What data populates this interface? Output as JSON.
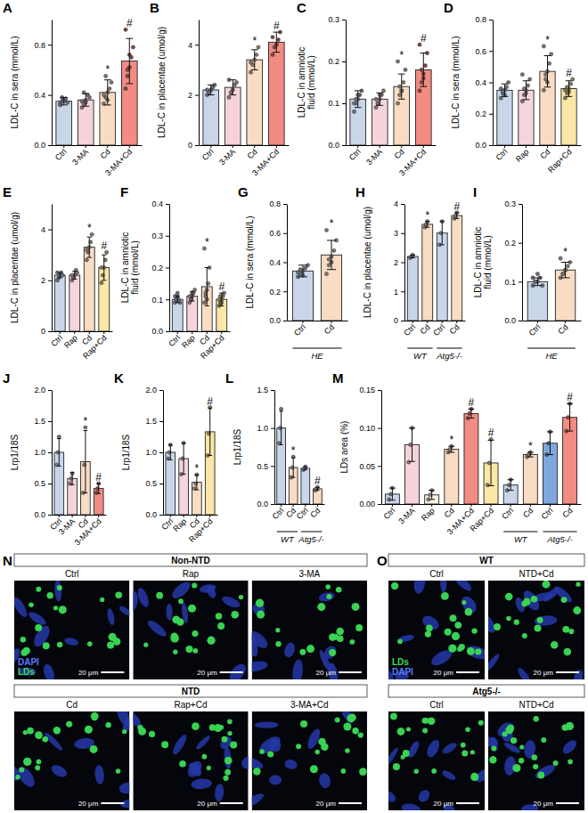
{
  "chart_data": [
    {
      "type": "bar",
      "panel": "A",
      "y_label": "LDL-C in sera (mmol/L)",
      "categories": [
        "Ctrl",
        "3-MA",
        "Cd",
        "3-MA+Cd"
      ],
      "values": [
        0.35,
        0.36,
        0.42,
        0.67
      ],
      "errors": [
        0.03,
        0.05,
        0.1,
        0.18
      ],
      "points": [
        [
          0.33,
          0.35,
          0.36,
          0.37,
          0.34,
          0.32,
          0.38,
          0.35
        ],
        [
          0.3,
          0.33,
          0.36,
          0.4,
          0.38,
          0.35,
          0.42,
          0.34
        ],
        [
          0.33,
          0.38,
          0.42,
          0.45,
          0.5,
          0.4,
          0.55,
          0.36
        ],
        [
          0.45,
          0.55,
          0.62,
          0.7,
          0.78,
          0.92,
          0.6,
          0.72
        ]
      ],
      "colors": [
        "#c9d6ea",
        "#f6d3da",
        "#f9dcc4",
        "#f28b82"
      ],
      "annotations": [
        null,
        null,
        "*",
        "#"
      ],
      "ylim": [
        0,
        1.0
      ],
      "yticks": [
        {
          "value": 0,
          "label": "0.0"
        },
        0.4,
        0.8
      ]
    },
    {
      "type": "bar",
      "panel": "B",
      "y_label": "LDL-C in placentae (umol/g)",
      "categories": [
        "Ctrl",
        "3-MA",
        "Cd",
        "3-MA+Cd"
      ],
      "values": [
        2.2,
        2.3,
        3.4,
        4.1
      ],
      "errors": [
        0.2,
        0.3,
        0.4,
        0.4
      ],
      "points": [
        [
          2.0,
          2.1,
          2.2,
          2.3,
          2.4,
          2.2
        ],
        [
          1.9,
          2.1,
          2.2,
          2.4,
          2.5,
          2.6
        ],
        [
          2.9,
          3.2,
          3.4,
          3.6,
          3.9,
          3.3
        ],
        [
          3.6,
          3.9,
          4.0,
          4.2,
          4.5,
          4.3
        ]
      ],
      "colors": [
        "#c9d6ea",
        "#f6d3da",
        "#f9dcc4",
        "#f28b82"
      ],
      "annotations": [
        null,
        null,
        "*",
        "#"
      ],
      "ylim": [
        0,
        5
      ],
      "yticks": [
        0,
        2,
        4
      ]
    },
    {
      "type": "bar",
      "panel": "C",
      "y_label": "LDL-C in amniotic fluid (mmol/L)",
      "categories": [
        "Ctrl",
        "3-MA",
        "Cd",
        "3-MA+Cd"
      ],
      "values": [
        0.11,
        0.11,
        0.14,
        0.18
      ],
      "errors": [
        0.02,
        0.015,
        0.03,
        0.04
      ],
      "points": [
        [
          0.08,
          0.1,
          0.11,
          0.12,
          0.13,
          0.1,
          0.11,
          0.12
        ],
        [
          0.09,
          0.1,
          0.11,
          0.12,
          0.13,
          0.11,
          0.1,
          0.12
        ],
        [
          0.1,
          0.12,
          0.13,
          0.15,
          0.18,
          0.2,
          0.14,
          0.13
        ],
        [
          0.13,
          0.15,
          0.17,
          0.19,
          0.22,
          0.24,
          0.18,
          0.16
        ]
      ],
      "colors": [
        "#c9d6ea",
        "#f6d3da",
        "#f9dcc4",
        "#f28b82"
      ],
      "annotations": [
        null,
        null,
        "*",
        "#"
      ],
      "ylim": [
        0,
        0.3
      ],
      "yticks": [
        {
          "value": 0,
          "label": "0.0"
        },
        0.1,
        0.2,
        0.3
      ]
    },
    {
      "type": "bar",
      "panel": "D",
      "y_label": "LDL-C in sera (mmol/L)",
      "categories": [
        "Ctrl",
        "Rap",
        "Cd",
        "Rap+Cd"
      ],
      "values": [
        0.35,
        0.35,
        0.47,
        0.36
      ],
      "errors": [
        0.04,
        0.06,
        0.1,
        0.05
      ],
      "points": [
        [
          0.3,
          0.33,
          0.35,
          0.37,
          0.4,
          0.36,
          0.34,
          0.32
        ],
        [
          0.28,
          0.32,
          0.35,
          0.38,
          0.42,
          0.45,
          0.36,
          0.33
        ],
        [
          0.35,
          0.42,
          0.47,
          0.52,
          0.58,
          0.63,
          0.45,
          0.4
        ],
        [
          0.3,
          0.33,
          0.36,
          0.39,
          0.42,
          0.35,
          0.37,
          0.34
        ]
      ],
      "colors": [
        "#c9d6ea",
        "#f5d5dc",
        "#f9dcc4",
        "#fbe7a6"
      ],
      "annotations": [
        null,
        null,
        "*",
        "#"
      ],
      "ylim": [
        0,
        0.8
      ],
      "yticks": [
        {
          "value": 0,
          "label": "0.0"
        },
        0.2,
        0.4,
        0.6,
        0.8
      ]
    },
    {
      "type": "bar",
      "panel": "E",
      "y_label": "LDL-C in placentae (umol/g)",
      "categories": [
        "Ctrl",
        "Rap",
        "Cd",
        "Rap+Cd"
      ],
      "values": [
        2.2,
        2.2,
        3.3,
        2.5
      ],
      "errors": [
        0.1,
        0.15,
        0.4,
        0.5
      ],
      "points": [
        [
          2.0,
          2.1,
          2.2,
          2.3,
          2.2,
          2.3
        ],
        [
          2.0,
          2.1,
          2.2,
          2.4,
          2.3,
          2.2
        ],
        [
          2.8,
          3.1,
          3.3,
          3.5,
          3.8,
          3.2
        ],
        [
          1.9,
          2.2,
          2.5,
          2.8,
          3.1,
          2.5
        ]
      ],
      "colors": [
        "#c9d6ea",
        "#f5d5dc",
        "#f9dcc4",
        "#fbe7a6"
      ],
      "annotations": [
        null,
        null,
        "*",
        "#"
      ],
      "ylim": [
        0,
        5
      ],
      "yticks": [
        0,
        2,
        4
      ]
    },
    {
      "type": "bar",
      "panel": "F",
      "y_label": "LDL-C in amniotic fluid (mmol/L)",
      "categories": [
        "Ctrl",
        "Rap",
        "Cd",
        "Rap+Cd"
      ],
      "values": [
        0.1,
        0.11,
        0.14,
        0.1
      ],
      "errors": [
        0.01,
        0.015,
        0.06,
        0.02
      ],
      "points": [
        [
          0.09,
          0.1,
          0.11,
          0.1,
          0.09,
          0.11,
          0.1,
          0.12
        ],
        [
          0.09,
          0.1,
          0.11,
          0.12,
          0.13,
          0.11,
          0.1,
          0.12
        ],
        [
          0.09,
          0.11,
          0.13,
          0.15,
          0.2,
          0.26,
          0.12,
          0.1
        ],
        [
          0.08,
          0.09,
          0.1,
          0.11,
          0.12,
          0.1,
          0.11,
          0.09
        ]
      ],
      "colors": [
        "#c9d6ea",
        "#f5d5dc",
        "#f9dcc4",
        "#fbe7a6"
      ],
      "annotations": [
        null,
        null,
        "*",
        "#"
      ],
      "ylim": [
        0,
        0.4
      ],
      "yticks": [
        {
          "value": 0,
          "label": "0.0"
        },
        0.1,
        0.2,
        0.3,
        0.4
      ]
    },
    {
      "type": "bar",
      "panel": "G",
      "y_label": "LDL-C in sera (mmol/L)",
      "categories": [
        "Ctrl",
        "Cd"
      ],
      "values": [
        0.34,
        0.45
      ],
      "errors": [
        0.04,
        0.1
      ],
      "points": [
        [
          0.3,
          0.32,
          0.34,
          0.36,
          0.38,
          0.33,
          0.35,
          0.31
        ],
        [
          0.32,
          0.38,
          0.44,
          0.48,
          0.55,
          0.62,
          0.42,
          0.4
        ]
      ],
      "colors": [
        "#c9d6ea",
        "#f9dcc4"
      ],
      "annotations": [
        null,
        "*"
      ],
      "groups": [
        {
          "label": "HE",
          "start": 0,
          "end": 1
        }
      ],
      "ylim": [
        0,
        0.8
      ],
      "yticks": [
        {
          "value": 0,
          "label": "0.0"
        },
        0.2,
        0.4,
        0.6,
        0.8
      ]
    },
    {
      "type": "bar",
      "panel": "H",
      "y_label": "LDL-C in placentae (umol/g)",
      "categories": [
        "Ctrl",
        "Cd",
        "Ctrl",
        "Cd"
      ],
      "values": [
        2.2,
        3.3,
        3.0,
        3.6
      ],
      "errors": [
        0.05,
        0.1,
        0.4,
        0.1
      ],
      "points": [
        [
          2.15,
          2.2,
          2.25
        ],
        [
          3.2,
          3.3,
          3.4
        ],
        [
          2.6,
          3.0,
          3.4
        ],
        [
          3.5,
          3.6,
          3.7
        ]
      ],
      "colors": [
        "#c9d6ea",
        "#f9dcc4",
        "#c9d6ea",
        "#f9dcc4"
      ],
      "annotations": [
        null,
        "*",
        null,
        "#"
      ],
      "groups": [
        {
          "label": "WT",
          "start": 0,
          "end": 1
        },
        {
          "label": "Atg5-/-",
          "start": 2,
          "end": 3
        }
      ],
      "ylim": [
        0,
        4
      ],
      "yticks": [
        0,
        1,
        2,
        3,
        4
      ]
    },
    {
      "type": "bar",
      "panel": "I",
      "y_label": "LDL-C in amniotic fluid (mmol/L)",
      "categories": [
        "Ctrl",
        "Cd"
      ],
      "values": [
        0.1,
        0.13
      ],
      "errors": [
        0.01,
        0.02
      ],
      "points": [
        [
          0.09,
          0.1,
          0.1,
          0.11,
          0.09,
          0.11,
          0.1,
          0.12
        ],
        [
          0.11,
          0.12,
          0.13,
          0.14,
          0.15,
          0.16,
          0.12,
          0.13
        ]
      ],
      "colors": [
        "#c9d6ea",
        "#f9dcc4"
      ],
      "annotations": [
        null,
        "*"
      ],
      "groups": [
        {
          "label": "HE",
          "start": 0,
          "end": 1
        }
      ],
      "ylim": [
        0,
        0.3
      ],
      "yticks": [
        {
          "value": 0,
          "label": "0.0"
        },
        0.1,
        0.2,
        0.3
      ]
    },
    {
      "type": "bar",
      "panel": "J",
      "y_label": "Lrp1/18S",
      "categories": [
        "Ctrl",
        "3-MA",
        "Cd",
        "3-MA+Cd"
      ],
      "values": [
        1.0,
        0.58,
        0.85,
        0.42
      ],
      "errors": [
        0.22,
        0.1,
        0.5,
        0.08
      ],
      "points": [
        [
          0.8,
          1.0,
          1.25
        ],
        [
          0.5,
          0.58,
          0.66
        ],
        [
          0.35,
          0.8,
          1.4
        ],
        [
          0.35,
          0.42,
          0.5
        ]
      ],
      "colors": [
        "#c9d6ea",
        "#f6d3da",
        "#f9dcc4",
        "#f28b82"
      ],
      "annotations": [
        null,
        null,
        "*",
        "#"
      ],
      "ylim": [
        0,
        2.0
      ],
      "yticks": [
        {
          "value": 0,
          "label": "0.0"
        },
        0.5,
        {
          "value": 1,
          "label": "1.0"
        },
        1.5,
        {
          "value": 2,
          "label": "2.0"
        }
      ]
    },
    {
      "type": "bar",
      "panel": "K",
      "y_label": "Lrp1/18S",
      "categories": [
        "Ctrl",
        "Rap",
        "Cd",
        "Rap+Cd"
      ],
      "values": [
        1.0,
        0.9,
        0.52,
        1.33
      ],
      "errors": [
        0.12,
        0.25,
        0.12,
        0.38
      ],
      "points": [
        [
          0.9,
          1.0,
          1.12
        ],
        [
          0.65,
          0.9,
          1.15
        ],
        [
          0.42,
          0.5,
          0.64
        ],
        [
          0.95,
          1.3,
          1.72
        ]
      ],
      "colors": [
        "#c9d6ea",
        "#f5d5dc",
        "#f9dcc4",
        "#fbe7a6"
      ],
      "annotations": [
        null,
        null,
        "*",
        "#"
      ],
      "ylim": [
        0,
        2.0
      ],
      "yticks": [
        {
          "value": 0,
          "label": "0.0"
        },
        0.5,
        {
          "value": 1,
          "label": "1.0"
        },
        1.5,
        {
          "value": 2,
          "label": "2.0"
        }
      ]
    },
    {
      "type": "bar",
      "panel": "L",
      "y_label": "Lrp1/18S",
      "categories": [
        "Ctrl",
        "Cd",
        "Ctrl",
        "Cd"
      ],
      "values": [
        1.0,
        0.48,
        0.47,
        0.2
      ],
      "errors": [
        0.22,
        0.13,
        0.02,
        0.02
      ],
      "points": [
        [
          0.8,
          1.0,
          1.25
        ],
        [
          0.35,
          0.48,
          0.62
        ],
        [
          0.45,
          0.47,
          0.49
        ],
        [
          0.18,
          0.2,
          0.22
        ]
      ],
      "colors": [
        "#c9d6ea",
        "#f9dcc4",
        "#c9d6ea",
        "#f9dcc4"
      ],
      "annotations": [
        null,
        "*",
        null,
        "#"
      ],
      "groups": [
        {
          "label": "WT",
          "start": 0,
          "end": 1
        },
        {
          "label": "Atg5-/-",
          "start": 2,
          "end": 3
        }
      ],
      "ylim": [
        0,
        1.5
      ],
      "yticks": [
        {
          "value": 0,
          "label": "0.0"
        },
        0.5,
        {
          "value": 1,
          "label": "1.0"
        },
        1.5
      ]
    },
    {
      "type": "bar",
      "panel": "M",
      "y_label": "LDs area (%)",
      "categories": [
        "Ctrl",
        "3-MA",
        "Rap",
        "Cd",
        "3-MA+Cd",
        "Rap+Cd",
        "Ctrl",
        "Cd",
        "Ctrl",
        "Cd"
      ],
      "values": [
        0.013,
        0.078,
        0.012,
        0.072,
        0.119,
        0.054,
        0.025,
        0.065,
        0.08,
        0.114
      ],
      "errors": [
        0.008,
        0.022,
        0.006,
        0.004,
        0.006,
        0.03,
        0.007,
        0.003,
        0.015,
        0.018
      ],
      "points": [
        [
          0.006,
          0.013,
          0.021
        ],
        [
          0.055,
          0.078,
          0.1
        ],
        [
          0.006,
          0.012,
          0.018
        ],
        [
          0.068,
          0.072,
          0.076
        ],
        [
          0.113,
          0.119,
          0.125
        ],
        [
          0.025,
          0.054,
          0.085
        ],
        [
          0.018,
          0.025,
          0.032
        ],
        [
          0.062,
          0.065,
          0.068
        ],
        [
          0.065,
          0.08,
          0.095
        ],
        [
          0.096,
          0.114,
          0.132
        ]
      ],
      "colors": [
        "#c9d6ea",
        "#f6d3da",
        "#fdf1e4",
        "#f9dcc4",
        "#f28b82",
        "#fbe7a6",
        "#c9d6ea",
        "#f9dcc4",
        "#7fa7de",
        "#f28b82"
      ],
      "annotations": [
        null,
        null,
        null,
        "*",
        "#",
        "#",
        null,
        "*",
        null,
        "#"
      ],
      "groups": [
        {
          "label": "WT",
          "start": 6,
          "end": 7
        },
        {
          "label": "Atg5-/-",
          "start": 8,
          "end": 9
        }
      ],
      "ylim": [
        0,
        0.15
      ],
      "yticks": [
        {
          "value": 0,
          "label": "0.00"
        },
        0.05,
        {
          "value": 0.1,
          "label": "0.10"
        },
        0.15
      ]
    }
  ],
  "images": [
    {
      "panel": "N",
      "scale_bar": "20 μm",
      "legend": [
        {
          "name": "DAPI",
          "color": "#5b78ff"
        },
        {
          "name": "LDs",
          "color": "#3fdc4f"
        }
      ],
      "rows": [
        {
          "header": "Non-NTD",
          "tiles": [
            "Ctrl",
            "Rap",
            "3-MA"
          ]
        },
        {
          "header": "NTD",
          "tiles": [
            "Cd",
            "Rap+Cd",
            "3-MA+Cd"
          ]
        }
      ]
    },
    {
      "panel": "O",
      "scale_bar": "20 μm",
      "legend": [
        {
          "name": "LDs",
          "color": "#3fdc4f"
        },
        {
          "name": "DAPI",
          "color": "#5b78ff"
        }
      ],
      "rows": [
        {
          "header": "WT",
          "tiles": [
            "Ctrl",
            "NTD+Cd"
          ]
        },
        {
          "header": "Atg5-/-",
          "tiles": [
            "Ctrl",
            "NTD+Cd"
          ]
        }
      ]
    }
  ]
}
